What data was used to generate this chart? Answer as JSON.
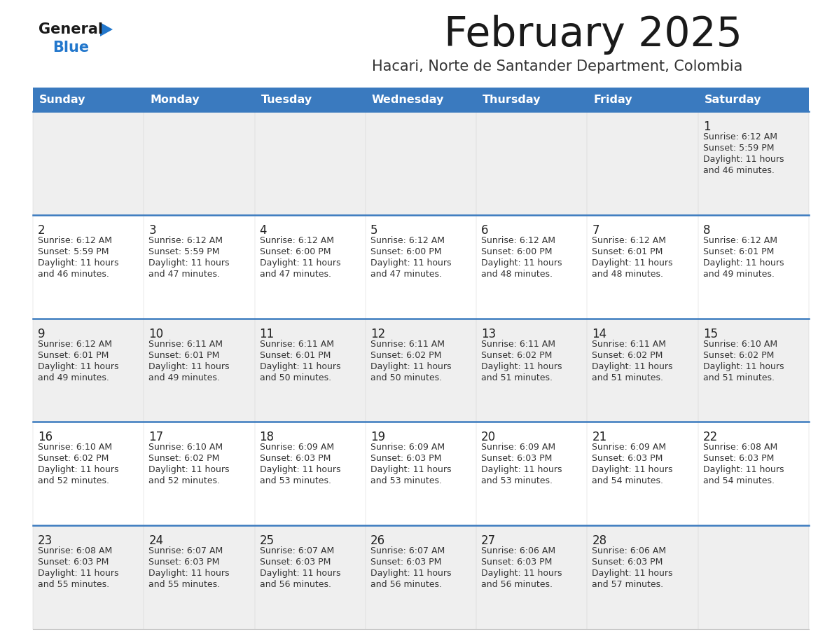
{
  "title": "February 2025",
  "subtitle": "Hacari, Norte de Santander Department, Colombia",
  "header_bg": "#3a7abf",
  "header_text": "#ffffff",
  "day_names": [
    "Sunday",
    "Monday",
    "Tuesday",
    "Wednesday",
    "Thursday",
    "Friday",
    "Saturday"
  ],
  "row_bg_even": "#efefef",
  "row_bg_odd": "#ffffff",
  "separator_color": "#3a7abf",
  "separator_color2": "#c0c0c0",
  "day_num_color": "#222222",
  "cell_text_color": "#333333",
  "calendar": [
    [
      null,
      null,
      null,
      null,
      null,
      null,
      {
        "day": 1,
        "sunrise": "6:12 AM",
        "sunset": "5:59 PM",
        "daylight": "11 hours and 46 minutes."
      }
    ],
    [
      {
        "day": 2,
        "sunrise": "6:12 AM",
        "sunset": "5:59 PM",
        "daylight": "11 hours and 46 minutes."
      },
      {
        "day": 3,
        "sunrise": "6:12 AM",
        "sunset": "5:59 PM",
        "daylight": "11 hours and 47 minutes."
      },
      {
        "day": 4,
        "sunrise": "6:12 AM",
        "sunset": "6:00 PM",
        "daylight": "11 hours and 47 minutes."
      },
      {
        "day": 5,
        "sunrise": "6:12 AM",
        "sunset": "6:00 PM",
        "daylight": "11 hours and 47 minutes."
      },
      {
        "day": 6,
        "sunrise": "6:12 AM",
        "sunset": "6:00 PM",
        "daylight": "11 hours and 48 minutes."
      },
      {
        "day": 7,
        "sunrise": "6:12 AM",
        "sunset": "6:01 PM",
        "daylight": "11 hours and 48 minutes."
      },
      {
        "day": 8,
        "sunrise": "6:12 AM",
        "sunset": "6:01 PM",
        "daylight": "11 hours and 49 minutes."
      }
    ],
    [
      {
        "day": 9,
        "sunrise": "6:12 AM",
        "sunset": "6:01 PM",
        "daylight": "11 hours and 49 minutes."
      },
      {
        "day": 10,
        "sunrise": "6:11 AM",
        "sunset": "6:01 PM",
        "daylight": "11 hours and 49 minutes."
      },
      {
        "day": 11,
        "sunrise": "6:11 AM",
        "sunset": "6:01 PM",
        "daylight": "11 hours and 50 minutes."
      },
      {
        "day": 12,
        "sunrise": "6:11 AM",
        "sunset": "6:02 PM",
        "daylight": "11 hours and 50 minutes."
      },
      {
        "day": 13,
        "sunrise": "6:11 AM",
        "sunset": "6:02 PM",
        "daylight": "11 hours and 51 minutes."
      },
      {
        "day": 14,
        "sunrise": "6:11 AM",
        "sunset": "6:02 PM",
        "daylight": "11 hours and 51 minutes."
      },
      {
        "day": 15,
        "sunrise": "6:10 AM",
        "sunset": "6:02 PM",
        "daylight": "11 hours and 51 minutes."
      }
    ],
    [
      {
        "day": 16,
        "sunrise": "6:10 AM",
        "sunset": "6:02 PM",
        "daylight": "11 hours and 52 minutes."
      },
      {
        "day": 17,
        "sunrise": "6:10 AM",
        "sunset": "6:02 PM",
        "daylight": "11 hours and 52 minutes."
      },
      {
        "day": 18,
        "sunrise": "6:09 AM",
        "sunset": "6:03 PM",
        "daylight": "11 hours and 53 minutes."
      },
      {
        "day": 19,
        "sunrise": "6:09 AM",
        "sunset": "6:03 PM",
        "daylight": "11 hours and 53 minutes."
      },
      {
        "day": 20,
        "sunrise": "6:09 AM",
        "sunset": "6:03 PM",
        "daylight": "11 hours and 53 minutes."
      },
      {
        "day": 21,
        "sunrise": "6:09 AM",
        "sunset": "6:03 PM",
        "daylight": "11 hours and 54 minutes."
      },
      {
        "day": 22,
        "sunrise": "6:08 AM",
        "sunset": "6:03 PM",
        "daylight": "11 hours and 54 minutes."
      }
    ],
    [
      {
        "day": 23,
        "sunrise": "6:08 AM",
        "sunset": "6:03 PM",
        "daylight": "11 hours and 55 minutes."
      },
      {
        "day": 24,
        "sunrise": "6:07 AM",
        "sunset": "6:03 PM",
        "daylight": "11 hours and 55 minutes."
      },
      {
        "day": 25,
        "sunrise": "6:07 AM",
        "sunset": "6:03 PM",
        "daylight": "11 hours and 56 minutes."
      },
      {
        "day": 26,
        "sunrise": "6:07 AM",
        "sunset": "6:03 PM",
        "daylight": "11 hours and 56 minutes."
      },
      {
        "day": 27,
        "sunrise": "6:06 AM",
        "sunset": "6:03 PM",
        "daylight": "11 hours and 56 minutes."
      },
      {
        "day": 28,
        "sunrise": "6:06 AM",
        "sunset": "6:03 PM",
        "daylight": "11 hours and 57 minutes."
      },
      null
    ]
  ]
}
